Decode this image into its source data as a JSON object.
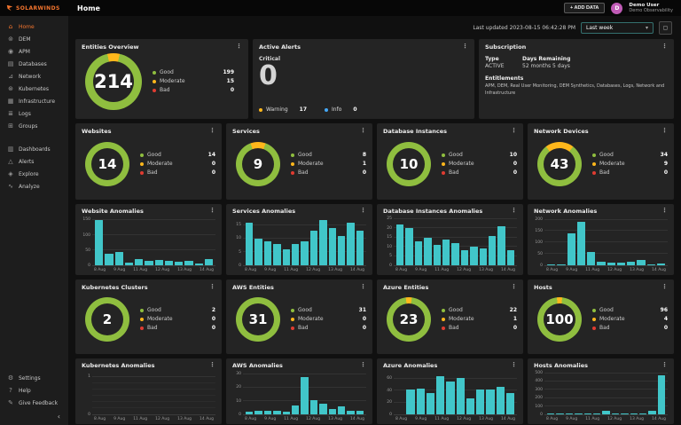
{
  "brand": {
    "name": "SOLARWINDS",
    "accent": "#f4752e"
  },
  "topbar": {
    "title": "Home",
    "add_data_button": "+ ADD DATA",
    "user_name": "Demo User",
    "user_org": "Demo Observability",
    "avatar_initial": "D"
  },
  "toolbar": {
    "last_updated": "Last updated 2023-08-15 06:42:28 PM",
    "time_range_value": "Last week",
    "chevron": "▾",
    "icon_button_glyph": "▢"
  },
  "sidebar": {
    "main": [
      {
        "label": "Home",
        "icon": "home-icon",
        "glyph": "⌂",
        "active": true
      },
      {
        "label": "DEM",
        "icon": "dem-icon",
        "glyph": "⊚",
        "active": false
      },
      {
        "label": "APM",
        "icon": "apm-icon",
        "glyph": "◉",
        "active": false
      },
      {
        "label": "Databases",
        "icon": "databases-icon",
        "glyph": "▤",
        "active": false
      },
      {
        "label": "Network",
        "icon": "network-icon",
        "glyph": "⊿",
        "active": false
      },
      {
        "label": "Kubernetes",
        "icon": "kubernetes-icon",
        "glyph": "⊛",
        "active": false
      },
      {
        "label": "Infrastructure",
        "icon": "infrastructure-icon",
        "glyph": "▦",
        "active": false
      },
      {
        "label": "Logs",
        "icon": "logs-icon",
        "glyph": "≣",
        "active": false
      },
      {
        "label": "Groups",
        "icon": "groups-icon",
        "glyph": "⊞",
        "active": false
      }
    ],
    "secondary": [
      {
        "label": "Dashboards",
        "icon": "dashboards-icon",
        "glyph": "▥",
        "active": false
      },
      {
        "label": "Alerts",
        "icon": "alerts-icon",
        "glyph": "△",
        "active": false
      },
      {
        "label": "Explore",
        "icon": "explore-icon",
        "glyph": "◈",
        "active": false
      },
      {
        "label": "Analyze",
        "icon": "analyze-icon",
        "glyph": "∿",
        "active": false
      }
    ],
    "footer": [
      {
        "label": "Settings",
        "icon": "settings-icon",
        "glyph": "⚙",
        "active": false
      },
      {
        "label": "Help",
        "icon": "help-icon",
        "glyph": "?",
        "active": false
      },
      {
        "label": "Give Feedback",
        "icon": "feedback-icon",
        "glyph": "✎",
        "active": false
      }
    ],
    "collapse_glyph": "‹"
  },
  "colors": {
    "good": "#8fbe3f",
    "moderate": "#ffb71b",
    "bad": "#e03c31",
    "bar": "#41c6c9",
    "warning": "#ffb71b",
    "info": "#45a7f5",
    "brand": "#f4752e"
  },
  "legend_labels": {
    "good": "Good",
    "moderate": "Moderate",
    "bad": "Bad"
  },
  "entities_overview": {
    "title": "Entities Overview",
    "value": 214,
    "good": 199,
    "moderate": 15,
    "bad": 0
  },
  "active_alerts": {
    "title": "Active Alerts",
    "critical_label": "Critical",
    "critical_value": "0",
    "warning_label": "Warning",
    "warning_value": "17",
    "info_label": "Info",
    "info_value": "0"
  },
  "subscription": {
    "title": "Subscription",
    "type_label": "Type",
    "type_value": "ACTIVE",
    "days_label": "Days Remaining",
    "days_value": "52 months 5 days",
    "entitlements_label": "Entitlements",
    "entitlements_text": "APM, DEM, Real User Monitoring, DEM Synthetics, Databases, Logs, Network and Infrastructure"
  },
  "donut_cards": [
    {
      "title": "Websites",
      "value": 14,
      "good": 14,
      "moderate": 0,
      "bad": 0
    },
    {
      "title": "Services",
      "value": 9,
      "good": 8,
      "moderate": 1,
      "bad": 0
    },
    {
      "title": "Database Instances",
      "value": 10,
      "good": 10,
      "moderate": 0,
      "bad": 0
    },
    {
      "title": "Network Devices",
      "value": 43,
      "good": 34,
      "moderate": 9,
      "bad": 0
    },
    {
      "title": "Kubernetes Clusters",
      "value": 2,
      "good": 2,
      "moderate": 0,
      "bad": 0
    },
    {
      "title": "AWS Entities",
      "value": 31,
      "good": 31,
      "moderate": 0,
      "bad": 0
    },
    {
      "title": "Azure Entities",
      "value": 23,
      "good": 22,
      "moderate": 1,
      "bad": 0
    },
    {
      "title": "Hosts",
      "value": 100,
      "good": 96,
      "moderate": 4,
      "bad": 0
    }
  ],
  "chart_data": [
    {
      "type": "bar",
      "title": "Website Anomalies",
      "categories": [
        "8 Aug",
        "9 Aug",
        "11 Aug",
        "12 Aug",
        "13 Aug",
        "14 Aug"
      ],
      "values": [
        150,
        38,
        45,
        10,
        22,
        14,
        18,
        15,
        12,
        15,
        7,
        20
      ],
      "yticks": [
        0,
        50,
        100,
        150
      ],
      "ylim": [
        0,
        160
      ]
    },
    {
      "type": "bar",
      "title": "Services Anomalies",
      "categories": [
        "8 Aug",
        "9 Aug",
        "11 Aug",
        "12 Aug",
        "13 Aug",
        "14 Aug"
      ],
      "values": [
        16,
        10,
        9,
        8,
        6,
        8,
        9,
        13,
        17,
        14,
        11,
        16,
        13
      ],
      "yticks": [
        0,
        5,
        10,
        15
      ],
      "ylim": [
        0,
        18
      ]
    },
    {
      "type": "bar",
      "title": "Database Instances Anomalies",
      "categories": [
        "8 Aug",
        "9 Aug",
        "11 Aug",
        "12 Aug",
        "13 Aug",
        "14 Aug"
      ],
      "values": [
        22,
        20,
        13,
        15,
        11,
        14,
        12,
        8,
        10,
        9,
        16,
        21,
        8
      ],
      "yticks": [
        0,
        5,
        10,
        15,
        20,
        25
      ],
      "ylim": [
        0,
        26
      ]
    },
    {
      "type": "bar",
      "title": "Network Anomalies",
      "categories": [
        "8 Aug",
        "9 Aug",
        "11 Aug",
        "12 Aug",
        "13 Aug",
        "14 Aug"
      ],
      "values": [
        2,
        3,
        140,
        190,
        60,
        14,
        10,
        12,
        14,
        24,
        5,
        8
      ],
      "yticks": [
        0,
        50,
        100,
        150,
        200
      ],
      "ylim": [
        0,
        210
      ]
    },
    {
      "type": "bar",
      "title": "Kubernetes Anomalies",
      "categories": [
        "8 Aug",
        "9 Aug",
        "11 Aug",
        "12 Aug",
        "13 Aug",
        "14 Aug"
      ],
      "values": [
        0,
        0,
        0,
        0,
        0,
        0,
        0,
        0,
        0,
        0,
        0,
        0
      ],
      "yticks": [
        0,
        1
      ],
      "ylim": [
        0,
        1.15
      ],
      "minor_gridlines": 5
    },
    {
      "type": "bar",
      "title": "AWS Anomalies",
      "categories": [
        "8 Aug",
        "9 Aug",
        "11 Aug",
        "12 Aug",
        "13 Aug",
        "14 Aug"
      ],
      "values": [
        2,
        3,
        3,
        3,
        2,
        7,
        28,
        11,
        8,
        4,
        6,
        3,
        3
      ],
      "yticks": [
        0,
        10,
        20,
        30
      ],
      "ylim": [
        0,
        32
      ]
    },
    {
      "type": "bar",
      "title": "Azure Anomalies",
      "categories": [
        "8 Aug",
        "9 Aug",
        "11 Aug",
        "12 Aug",
        "13 Aug",
        "14 Aug"
      ],
      "values": [
        0,
        42,
        44,
        36,
        65,
        55,
        62,
        27,
        42,
        42,
        47,
        36
      ],
      "yticks": [
        0,
        20,
        40,
        60
      ],
      "ylim": [
        0,
        72
      ]
    },
    {
      "type": "bar",
      "title": "Hosts Anomalies",
      "categories": [
        "8 Aug",
        "9 Aug",
        "11 Aug",
        "12 Aug",
        "13 Aug",
        "14 Aug"
      ],
      "values": [
        3,
        2,
        3,
        2,
        4,
        6,
        45,
        12,
        8,
        4,
        3,
        40,
        480
      ],
      "yticks": [
        0,
        100,
        200,
        300,
        400,
        500
      ],
      "ylim": [
        0,
        520
      ]
    }
  ]
}
